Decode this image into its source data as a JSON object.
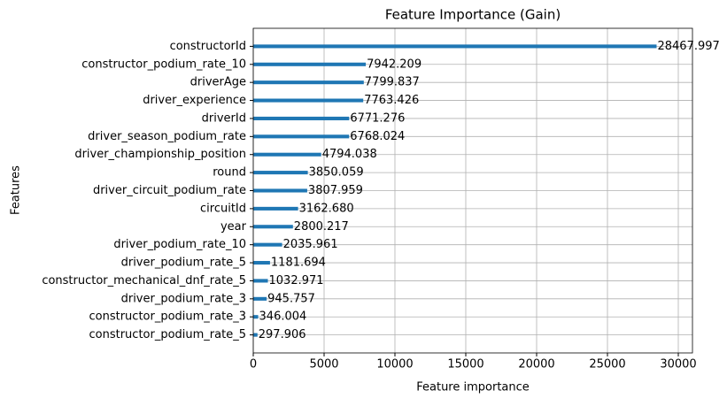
{
  "chart_data": {
    "type": "barh",
    "title": "Feature Importance (Gain)",
    "xlabel": "Feature importance",
    "ylabel": "Features",
    "categories": [
      "constructorId",
      "constructor_podium_rate_10",
      "driverAge",
      "driver_experience",
      "driverId",
      "driver_season_podium_rate",
      "driver_championship_position",
      "round",
      "driver_circuit_podium_rate",
      "circuitId",
      "year",
      "driver_podium_rate_10",
      "driver_podium_rate_5",
      "constructor_mechanical_dnf_rate_5",
      "driver_podium_rate_3",
      "constructor_podium_rate_3",
      "constructor_podium_rate_5"
    ],
    "values": [
      28467.997,
      7942.209,
      7799.837,
      7763.426,
      6771.276,
      6768.024,
      4794.038,
      3850.059,
      3807.959,
      3162.68,
      2800.217,
      2035.961,
      1181.694,
      1032.971,
      945.757,
      346.004,
      297.906
    ],
    "value_labels": [
      "28467.997",
      "7942.209",
      "7799.837",
      "7763.426",
      "6771.276",
      "6768.024",
      "4794.038",
      "3850.059",
      "3807.959",
      "3162.680",
      "2800.217",
      "2035.961",
      "1181.694",
      "1032.971",
      "945.757",
      "346.004",
      "297.906"
    ],
    "color": "#1f77b4",
    "xlim": [
      0,
      31000
    ],
    "xticks": [
      0,
      5000,
      10000,
      15000,
      20000,
      25000,
      30000
    ],
    "grid": true
  }
}
